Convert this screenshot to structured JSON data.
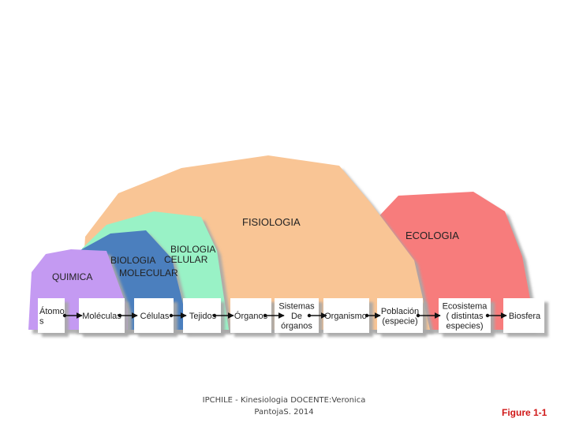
{
  "regions": {
    "fisiologia": "FISIOLOGIA",
    "ecologia": "ECOLOGIA",
    "quimica": "QUIMICA",
    "biologia_molecular": [
      "BIOLOGIA",
      "MOLECULAR"
    ],
    "biologia_celular": [
      "BIOLOGIA",
      "CELULAR"
    ]
  },
  "levels": [
    [
      "Átomo",
      "s"
    ],
    [
      "Moléculas"
    ],
    [
      "Células"
    ],
    [
      "Tejidos"
    ],
    [
      "Órganos"
    ],
    [
      "Sistemas",
      "De",
      "órganos"
    ],
    [
      "Organismo"
    ],
    [
      "Población",
      "(especie)"
    ],
    [
      "Ecosistema",
      "( distintas",
      "especies)"
    ],
    [
      "Biosfera"
    ]
  ],
  "colors": {
    "fisiologia": "#f9c595",
    "ecologia": "#f77b7c",
    "biologia_celular": "#99f2c6",
    "biologia_molecular": "#4b7fbe",
    "quimica": "#c49af2",
    "arrow": "#111111",
    "figure_label": "#d01818"
  },
  "footer": {
    "line1": "IPCHILE - Kinesiologia   DOCENTE:Veronica",
    "line2": "PantojaS. 2014"
  },
  "figure_label": "Figure 1-1"
}
